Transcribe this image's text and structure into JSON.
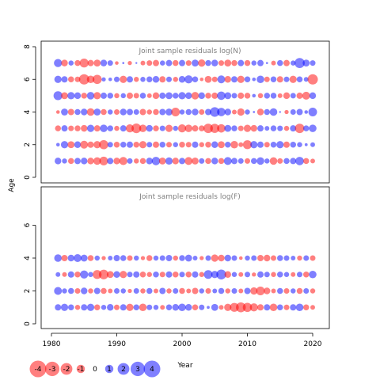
{
  "chart_data": {
    "type": "scatter",
    "subtype": "bubble",
    "ylabel": "Age",
    "xlabel": "Year",
    "xlim": [
      1980,
      2020
    ],
    "xticks": [
      1980,
      1990,
      2000,
      2010,
      2020
    ],
    "colors": {
      "positive": "#0000ff",
      "negative": "#ff0000"
    },
    "panels": [
      {
        "title": "Joint sample residuals log(N)",
        "ylim": [
          0,
          8
        ],
        "yticks": [
          0,
          2,
          4,
          6,
          8
        ],
        "ages": [
          1,
          2,
          3,
          4,
          5,
          6,
          7
        ],
        "years": [
          1981,
          2020
        ],
        "residuals": {
          "7": [
            1.5,
            -1.0,
            0.6,
            -0.8,
            -1.8,
            -0.9,
            -1.1,
            1.0,
            0.7,
            -0.3,
            0.1,
            -0.4,
            0.0,
            -0.5,
            -0.7,
            -0.9,
            0.6,
            0.9,
            -0.8,
            0.9,
            -0.7,
            1.1,
            -1.2,
            0.8,
            1.0,
            -0.7,
            -1.1,
            -0.8,
            0.9,
            -0.8,
            0.6,
            0.9,
            0.1,
            -0.5,
            0.8,
            -0.9,
            0.6,
            2.3,
            1.1,
            0.7
          ],
          "6": [
            1.2,
            0.9,
            -0.8,
            -0.7,
            -2.4,
            -1.3,
            -1.9,
            0.4,
            0.3,
            0.7,
            -1.2,
            0.9,
            -0.6,
            0.6,
            0.8,
            1.0,
            -0.9,
            0.7,
            -0.6,
            1.0,
            1.5,
            0.8,
            -0.3,
            -1.1,
            -0.7,
            1.4,
            -1.0,
            0.9,
            -1.2,
            0.8,
            0.3,
            1.3,
            -0.7,
            0.8,
            -0.9,
            0.7,
            -1.2,
            0.8,
            0.5,
            -2.4
          ],
          "5": [
            1.8,
            -1.1,
            1.2,
            1.0,
            -0.8,
            1.3,
            -1.2,
            0.9,
            0.8,
            -0.6,
            0.6,
            -0.9,
            -0.7,
            0.8,
            -0.5,
            -1.0,
            0.9,
            1.1,
            0.8,
            1.2,
            1.0,
            -1.3,
            1.0,
            -0.8,
            -0.9,
            1.6,
            1.1,
            0.7,
            -0.9,
            -0.8,
            0.3,
            -0.6,
            0.8,
            0.8,
            -0.5,
            -1.0,
            0.7,
            -0.9,
            -1.4,
            1.0
          ],
          "4": [
            -0.3,
            1.1,
            -0.9,
            0.8,
            1.0,
            -1.3,
            1.1,
            -0.8,
            0.6,
            -0.7,
            1.0,
            0.9,
            0.7,
            -0.9,
            -0.6,
            -0.8,
            0.9,
            1.1,
            -1.7,
            0.6,
            0.8,
            1.0,
            -0.7,
            0.9,
            2.1,
            1.6,
            1.0,
            -0.5,
            -1.2,
            0.6,
            0.1,
            -1.0,
            0.8,
            1.3,
            0.0,
            -0.4,
            0.7,
            0.9,
            0.3,
            1.7
          ],
          "3": [
            -0.8,
            0.9,
            -0.7,
            -0.8,
            -1.0,
            1.2,
            -0.9,
            1.3,
            0.8,
            -0.6,
            0.9,
            -1.5,
            -2.1,
            -1.3,
            1.0,
            -0.8,
            0.7,
            -1.2,
            0.6,
            -1.5,
            -1.3,
            -0.9,
            -0.8,
            -2.0,
            -1.9,
            -1.6,
            1.1,
            0.8,
            -0.7,
            -1.2,
            -1.0,
            0.9,
            0.5,
            0.8,
            0.7,
            -0.6,
            0.9,
            -2.0,
            0.8,
            1.3
          ],
          "2": [
            0.3,
            1.2,
            -1.1,
            1.0,
            -1.4,
            -0.9,
            -1.2,
            -1.9,
            0.7,
            -0.8,
            0.8,
            0.9,
            -0.8,
            -1.2,
            0.7,
            -0.9,
            0.8,
            -0.7,
            0.6,
            -0.8,
            -0.7,
            0.9,
            -0.6,
            -0.8,
            1.0,
            -1.1,
            0.8,
            -1.3,
            -0.5,
            -1.8,
            1.2,
            0.9,
            -0.7,
            0.8,
            1.2,
            -0.9,
            0.8,
            0.6,
            0.2,
            0.5
          ],
          "1": [
            1.0,
            0.6,
            -0.8,
            0.9,
            1.0,
            -1.0,
            -1.3,
            -1.7,
            0.9,
            -1.0,
            -1.5,
            0.7,
            -0.6,
            -0.8,
            1.0,
            1.6,
            -1.1,
            1.2,
            -1.0,
            0.9,
            -1.4,
            -1.1,
            0.7,
            -0.8,
            1.0,
            -0.8,
            1.4,
            0.9,
            0.7,
            -0.7,
            0.8,
            1.3,
            0.6,
            -1.3,
            -0.7,
            0.8,
            0.9,
            1.6,
            -0.8,
            -0.5
          ]
        }
      },
      {
        "title": "Joint sample residuals log(F)",
        "ylim": [
          0,
          6
        ],
        "yticks": [
          0,
          2,
          4,
          6
        ],
        "ages": [
          1,
          2,
          3,
          4
        ],
        "years": [
          1981,
          2020
        ],
        "residuals": {
          "4": [
            1.3,
            -0.9,
            1.0,
            1.4,
            1.1,
            -0.8,
            0.6,
            -0.4,
            0.5,
            0.9,
            0.8,
            -0.7,
            0.6,
            -0.4,
            -0.8,
            0.6,
            0.7,
            0.9,
            -0.6,
            0.8,
            1.1,
            0.5,
            -0.4,
            0.7,
            -1.2,
            -1.0,
            1.0,
            0.7,
            -0.3,
            0.6,
            0.7,
            -0.9,
            -1.0,
            -0.7,
            0.8,
            0.7,
            0.5,
            -0.6,
            0.7,
            -0.7
          ],
          "3": [
            0.5,
            -0.5,
            0.9,
            -0.8,
            1.5,
            0.6,
            -1.8,
            -2.1,
            -1.1,
            1.0,
            -1.2,
            0.7,
            0.9,
            -0.8,
            -0.6,
            0.8,
            -0.7,
            0.9,
            -0.8,
            0.7,
            -0.8,
            0.9,
            -0.6,
            1.7,
            1.2,
            2.2,
            -1.0,
            0.6,
            -0.5,
            0.7,
            -0.4,
            0.9,
            0.7,
            -0.6,
            0.8,
            0.6,
            -0.5,
            0.7,
            -0.8,
            1.3
          ],
          "2": [
            1.4,
            0.6,
            0.8,
            -0.7,
            1.0,
            -0.6,
            0.9,
            -0.8,
            -0.5,
            0.7,
            0.6,
            -0.4,
            0.7,
            -0.6,
            0.8,
            -0.5,
            0.9,
            -0.6,
            0.7,
            -0.8,
            -0.5,
            -0.9,
            0.6,
            -0.7,
            0.5,
            0.8,
            -0.6,
            0.7,
            -0.5,
            0.9,
            -1.2,
            -1.7,
            -1.0,
            -0.5,
            0.8,
            -0.7,
            0.6,
            -0.8,
            0.7,
            -0.6
          ],
          "1": [
            0.9,
            1.2,
            0.8,
            -0.6,
            0.9,
            1.2,
            -0.8,
            0.6,
            1.0,
            -0.7,
            0.9,
            -1.2,
            0.8,
            -1.3,
            0.7,
            0.6,
            -0.5,
            0.8,
            1.0,
            1.3,
            1.0,
            -0.8,
            0.7,
            0.2,
            1.1,
            -0.5,
            -1.2,
            -1.8,
            -2.2,
            -1.9,
            -1.5,
            -0.9,
            0.9,
            -1.3,
            0.8,
            -0.7,
            0.9,
            1.3,
            -0.8,
            -0.5
          ]
        }
      }
    ],
    "legend": {
      "position": "bottom-left",
      "values": [
        -4,
        -3,
        -2,
        -1,
        0,
        1,
        2,
        3,
        4
      ],
      "labels": [
        "-4",
        "-3",
        "-2",
        "-1",
        "0",
        "1",
        "2",
        "3",
        "4"
      ]
    }
  }
}
